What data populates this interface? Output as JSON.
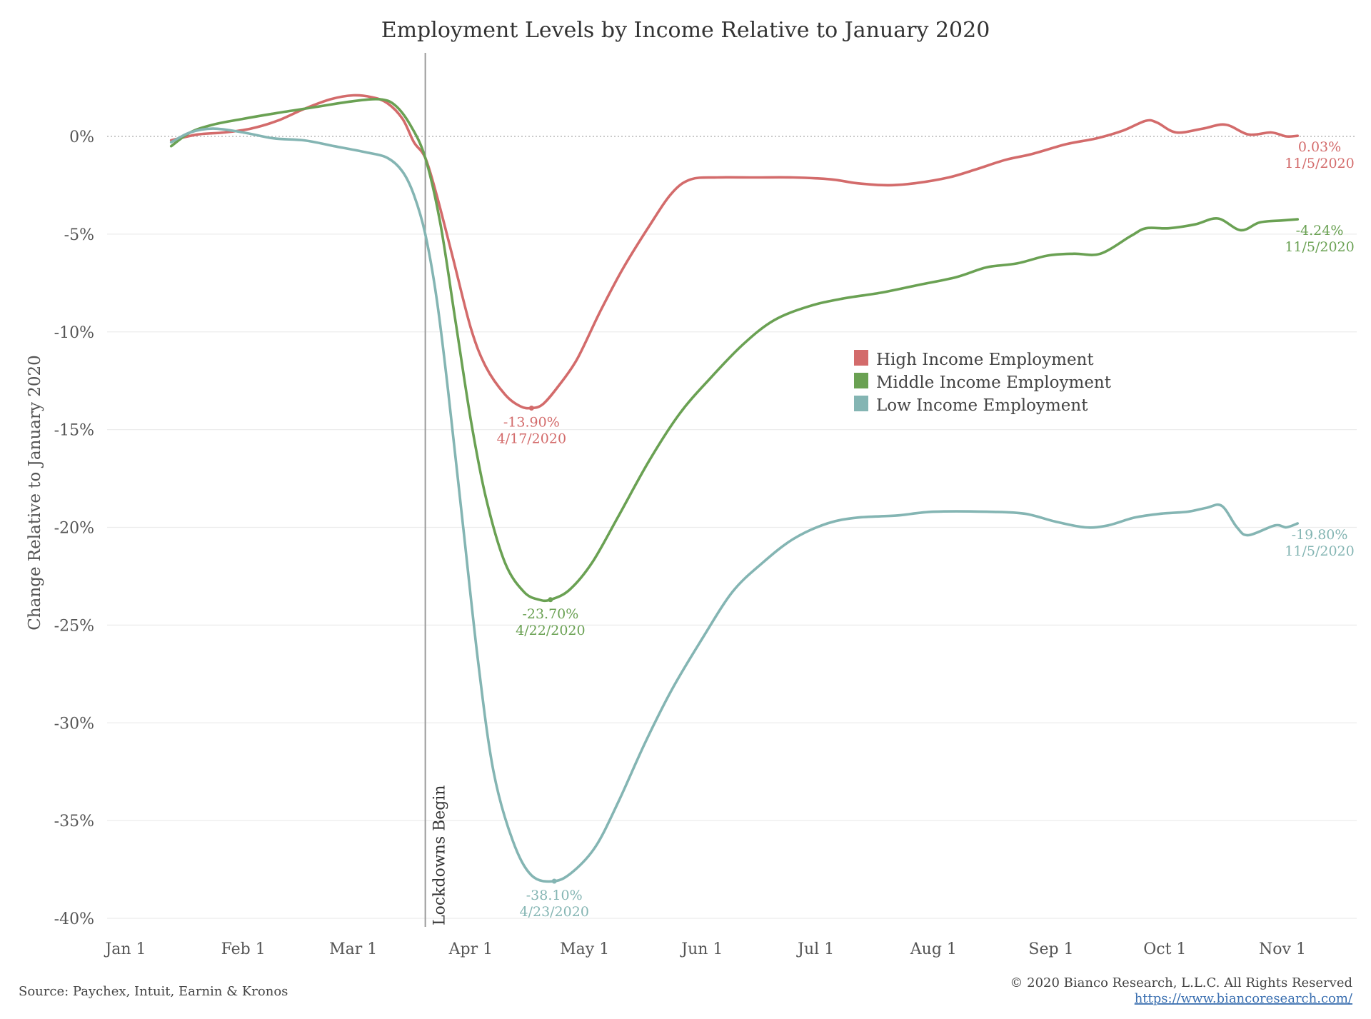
{
  "chart_data": {
    "type": "line",
    "title": "Employment Levels by Income Relative to January 2020",
    "ylabel": "Change Relative to January 2020",
    "xlabel": "",
    "xlim": [
      "2020-01-01",
      "2020-11-20"
    ],
    "ylim": [
      -40,
      4
    ],
    "y_ticks": [
      0,
      -5,
      -10,
      -15,
      -20,
      -25,
      -30,
      -35,
      -40
    ],
    "y_tick_labels": [
      "0%",
      "-5%",
      "-10%",
      "-15%",
      "-20%",
      "-25%",
      "-30%",
      "-35%",
      "-40%"
    ],
    "x_ticks": [
      "2020-01-01",
      "2020-02-01",
      "2020-03-01",
      "2020-04-01",
      "2020-05-01",
      "2020-06-01",
      "2020-07-01",
      "2020-08-01",
      "2020-09-01",
      "2020-10-01",
      "2020-11-01"
    ],
    "x_tick_labels": [
      "Jan 1",
      "Feb 1",
      "Mar 1",
      "Apr 1",
      "May 1",
      "Jun 1",
      "Jul 1",
      "Aug 1",
      "Sep 1",
      "Oct 1",
      "Nov 1"
    ],
    "grid": "horizontal",
    "legend_position": "center-right",
    "reference_line": {
      "date": "2020-03-20",
      "label": "Lockdowns Begin"
    },
    "series": [
      {
        "name": "High Income Employment",
        "color": "#d36b6b",
        "points": [
          [
            "2020-01-13",
            -0.2
          ],
          [
            "2020-01-20",
            0.1
          ],
          [
            "2020-01-27",
            0.2
          ],
          [
            "2020-02-03",
            0.4
          ],
          [
            "2020-02-10",
            0.8
          ],
          [
            "2020-02-17",
            1.4
          ],
          [
            "2020-02-24",
            1.9
          ],
          [
            "2020-03-01",
            2.1
          ],
          [
            "2020-03-06",
            2.0
          ],
          [
            "2020-03-10",
            1.7
          ],
          [
            "2020-03-14",
            0.9
          ],
          [
            "2020-03-17",
            -0.3
          ],
          [
            "2020-03-20",
            -1.1
          ],
          [
            "2020-03-23",
            -3.0
          ],
          [
            "2020-03-27",
            -6.0
          ],
          [
            "2020-04-01",
            -9.8
          ],
          [
            "2020-04-05",
            -11.8
          ],
          [
            "2020-04-10",
            -13.2
          ],
          [
            "2020-04-14",
            -13.8
          ],
          [
            "2020-04-17",
            -13.9
          ],
          [
            "2020-04-20",
            -13.7
          ],
          [
            "2020-04-24",
            -12.8
          ],
          [
            "2020-04-29",
            -11.4
          ],
          [
            "2020-05-05",
            -9.0
          ],
          [
            "2020-05-11",
            -6.8
          ],
          [
            "2020-05-18",
            -4.6
          ],
          [
            "2020-05-24",
            -2.9
          ],
          [
            "2020-05-29",
            -2.2
          ],
          [
            "2020-06-05",
            -2.1
          ],
          [
            "2020-06-15",
            -2.1
          ],
          [
            "2020-06-25",
            -2.1
          ],
          [
            "2020-07-05",
            -2.2
          ],
          [
            "2020-07-12",
            -2.4
          ],
          [
            "2020-07-20",
            -2.5
          ],
          [
            "2020-07-27",
            -2.4
          ],
          [
            "2020-08-05",
            -2.1
          ],
          [
            "2020-08-12",
            -1.7
          ],
          [
            "2020-08-20",
            -1.2
          ],
          [
            "2020-08-27",
            -0.9
          ],
          [
            "2020-09-05",
            -0.4
          ],
          [
            "2020-09-13",
            -0.1
          ],
          [
            "2020-09-20",
            0.3
          ],
          [
            "2020-09-26",
            0.8
          ],
          [
            "2020-09-29",
            0.7
          ],
          [
            "2020-10-04",
            0.2
          ],
          [
            "2020-10-11",
            0.4
          ],
          [
            "2020-10-17",
            0.6
          ],
          [
            "2020-10-23",
            0.1
          ],
          [
            "2020-10-29",
            0.2
          ],
          [
            "2020-11-02",
            0.0
          ],
          [
            "2020-11-05",
            0.03
          ]
        ]
      },
      {
        "name": "Middle Income Employment",
        "color": "#6aa153",
        "points": [
          [
            "2020-01-13",
            -0.5
          ],
          [
            "2020-01-18",
            0.2
          ],
          [
            "2020-01-24",
            0.6
          ],
          [
            "2020-02-01",
            0.9
          ],
          [
            "2020-02-10",
            1.2
          ],
          [
            "2020-02-20",
            1.5
          ],
          [
            "2020-03-01",
            1.8
          ],
          [
            "2020-03-08",
            1.9
          ],
          [
            "2020-03-12",
            1.6
          ],
          [
            "2020-03-16",
            0.6
          ],
          [
            "2020-03-20",
            -1.1
          ],
          [
            "2020-03-24",
            -4.5
          ],
          [
            "2020-03-28",
            -9.5
          ],
          [
            "2020-04-01",
            -14.5
          ],
          [
            "2020-04-05",
            -18.5
          ],
          [
            "2020-04-10",
            -21.8
          ],
          [
            "2020-04-15",
            -23.3
          ],
          [
            "2020-04-19",
            -23.7
          ],
          [
            "2020-04-22",
            -23.7
          ],
          [
            "2020-04-27",
            -23.2
          ],
          [
            "2020-05-03",
            -21.8
          ],
          [
            "2020-05-10",
            -19.4
          ],
          [
            "2020-05-18",
            -16.6
          ],
          [
            "2020-05-26",
            -14.2
          ],
          [
            "2020-06-03",
            -12.4
          ],
          [
            "2020-06-12",
            -10.6
          ],
          [
            "2020-06-20",
            -9.4
          ],
          [
            "2020-06-29",
            -8.7
          ],
          [
            "2020-07-08",
            -8.3
          ],
          [
            "2020-07-18",
            -8.0
          ],
          [
            "2020-07-28",
            -7.6
          ],
          [
            "2020-08-07",
            -7.2
          ],
          [
            "2020-08-15",
            -6.7
          ],
          [
            "2020-08-23",
            -6.5
          ],
          [
            "2020-08-31",
            -6.1
          ],
          [
            "2020-09-07",
            -6.0
          ],
          [
            "2020-09-14",
            -6.0
          ],
          [
            "2020-09-22",
            -5.1
          ],
          [
            "2020-09-26",
            -4.7
          ],
          [
            "2020-10-02",
            -4.7
          ],
          [
            "2020-10-09",
            -4.5
          ],
          [
            "2020-10-15",
            -4.2
          ],
          [
            "2020-10-21",
            -4.8
          ],
          [
            "2020-10-26",
            -4.4
          ],
          [
            "2020-11-01",
            -4.3
          ],
          [
            "2020-11-05",
            -4.24
          ]
        ]
      },
      {
        "name": "Low Income Employment",
        "color": "#84b5b3",
        "points": [
          [
            "2020-01-13",
            -0.3
          ],
          [
            "2020-01-18",
            0.2
          ],
          [
            "2020-01-24",
            0.4
          ],
          [
            "2020-02-01",
            0.2
          ],
          [
            "2020-02-09",
            -0.1
          ],
          [
            "2020-02-17",
            -0.2
          ],
          [
            "2020-02-25",
            -0.5
          ],
          [
            "2020-03-04",
            -0.8
          ],
          [
            "2020-03-10",
            -1.1
          ],
          [
            "2020-03-14",
            -1.8
          ],
          [
            "2020-03-17",
            -3.0
          ],
          [
            "2020-03-20",
            -5.0
          ],
          [
            "2020-03-23",
            -8.3
          ],
          [
            "2020-03-26",
            -13.0
          ],
          [
            "2020-03-30",
            -20.0
          ],
          [
            "2020-04-03",
            -27.0
          ],
          [
            "2020-04-07",
            -32.5
          ],
          [
            "2020-04-12",
            -36.0
          ],
          [
            "2020-04-17",
            -37.8
          ],
          [
            "2020-04-23",
            -38.1
          ],
          [
            "2020-04-28",
            -37.6
          ],
          [
            "2020-05-04",
            -36.3
          ],
          [
            "2020-05-10",
            -34.0
          ],
          [
            "2020-05-17",
            -31.0
          ],
          [
            "2020-05-24",
            -28.3
          ],
          [
            "2020-06-01",
            -25.7
          ],
          [
            "2020-06-09",
            -23.3
          ],
          [
            "2020-06-17",
            -21.8
          ],
          [
            "2020-06-25",
            -20.6
          ],
          [
            "2020-07-04",
            -19.8
          ],
          [
            "2020-07-12",
            -19.5
          ],
          [
            "2020-07-22",
            -19.4
          ],
          [
            "2020-08-01",
            -19.2
          ],
          [
            "2020-08-15",
            -19.2
          ],
          [
            "2020-08-25",
            -19.3
          ],
          [
            "2020-09-02",
            -19.7
          ],
          [
            "2020-09-10",
            -20.0
          ],
          [
            "2020-09-16",
            -19.9
          ],
          [
            "2020-09-23",
            -19.5
          ],
          [
            "2020-09-30",
            -19.3
          ],
          [
            "2020-10-07",
            -19.2
          ],
          [
            "2020-10-12",
            -19.0
          ],
          [
            "2020-10-16",
            -18.9
          ],
          [
            "2020-10-20",
            -20.0
          ],
          [
            "2020-10-23",
            -20.4
          ],
          [
            "2020-10-30",
            -19.9
          ],
          [
            "2020-11-02",
            -20.0
          ],
          [
            "2020-11-05",
            -19.8
          ]
        ]
      }
    ],
    "annotations": [
      {
        "series": 0,
        "date": "2020-04-17",
        "value": -13.9,
        "label": "-13.90%",
        "date_label": "4/17/2020"
      },
      {
        "series": 1,
        "date": "2020-04-22",
        "value": -23.7,
        "label": "-23.70%",
        "date_label": "4/22/2020"
      },
      {
        "series": 2,
        "date": "2020-04-23",
        "value": -38.1,
        "label": "-38.10%",
        "date_label": "4/23/2020"
      },
      {
        "series": 0,
        "date": "2020-11-05",
        "value": 0.03,
        "label": "0.03%",
        "date_label": "11/5/2020"
      },
      {
        "series": 1,
        "date": "2020-11-05",
        "value": -4.24,
        "label": "-4.24%",
        "date_label": "11/5/2020"
      },
      {
        "series": 2,
        "date": "2020-11-05",
        "value": -19.8,
        "label": "-19.80%",
        "date_label": "11/5/2020"
      }
    ]
  },
  "footer": {
    "source": "Source: Paychex, Intuit, Earnin & Kronos",
    "copyright": "© 2020 Bianco Research, L.L.C. All Rights Reserved",
    "url": "https://www.biancoresearch.com/"
  }
}
